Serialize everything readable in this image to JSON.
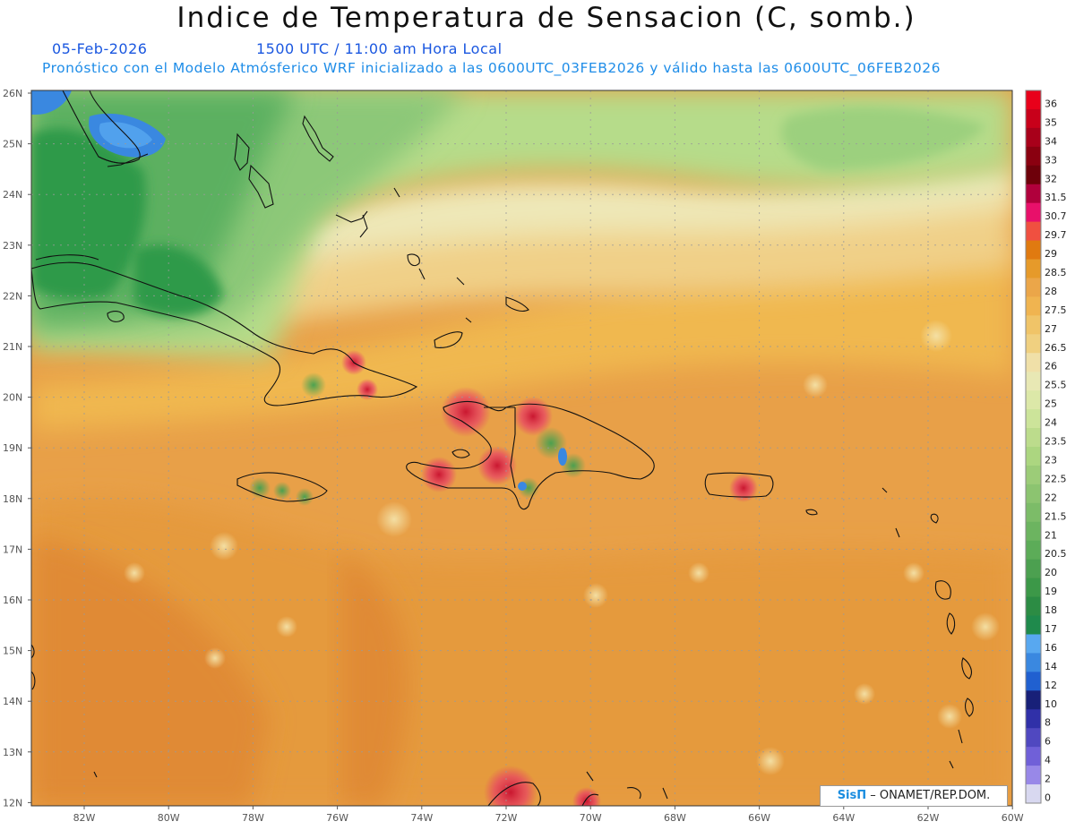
{
  "header": {
    "title": "Indice de Temperatura de Sensacion (C, somb.)",
    "date": "05-Feb-2026",
    "time": "1500 UTC / 11:00 am Hora Local",
    "model": "Pronóstico con el Modelo Atmósferico WRF inicializado a las 0600UTC_03FEB2026 y válido hasta las  0600UTC_06FEB2026"
  },
  "axes": {
    "lat_labels": [
      "26N",
      "25N",
      "24N",
      "23N",
      "22N",
      "21N",
      "20N",
      "19N",
      "18N",
      "17N",
      "16N",
      "15N",
      "14N",
      "13N",
      "12N"
    ],
    "lon_labels": [
      "82W",
      "80W",
      "78W",
      "76W",
      "74W",
      "72W",
      "70W",
      "68W",
      "66W",
      "64W",
      "62W",
      "60W"
    ]
  },
  "legend": {
    "levels": [
      "36",
      "35",
      "34",
      "33",
      "32",
      "31.5",
      "30.7",
      "29.7",
      "29",
      "28.5",
      "28",
      "27.5",
      "27",
      "26.5",
      "26",
      "25.5",
      "25",
      "24",
      "23.5",
      "23",
      "22.5",
      "22",
      "21.5",
      "21",
      "20.5",
      "20",
      "19",
      "18",
      "17",
      "16",
      "14",
      "12",
      "10",
      "8",
      "6",
      "4",
      "2",
      "0"
    ],
    "colors": [
      "#e8001a",
      "#c8001a",
      "#a8001a",
      "#8a0010",
      "#6e000a",
      "#b0003c",
      "#e8106a",
      "#f05040",
      "#e07a10",
      "#e69a2a",
      "#eba649",
      "#f0b450",
      "#f0c468",
      "#f0d080",
      "#f0e0a8",
      "#e8e8b4",
      "#dce8a8",
      "#cce49a",
      "#bcdc8c",
      "#acd680",
      "#9ccc78",
      "#8cc470",
      "#7cbc68",
      "#6cb460",
      "#5cac58",
      "#4ca050",
      "#3c9848",
      "#2c8c44",
      "#1f8a4c",
      "#58a8f0",
      "#3a88e0",
      "#2060d0",
      "#182078",
      "#3030a8",
      "#5048c0",
      "#7060d8",
      "#9888e8",
      "#d8d8f0"
    ]
  },
  "credit": {
    "logo": "SisΠ",
    "text": "– ONAMET/REP.DOM."
  }
}
